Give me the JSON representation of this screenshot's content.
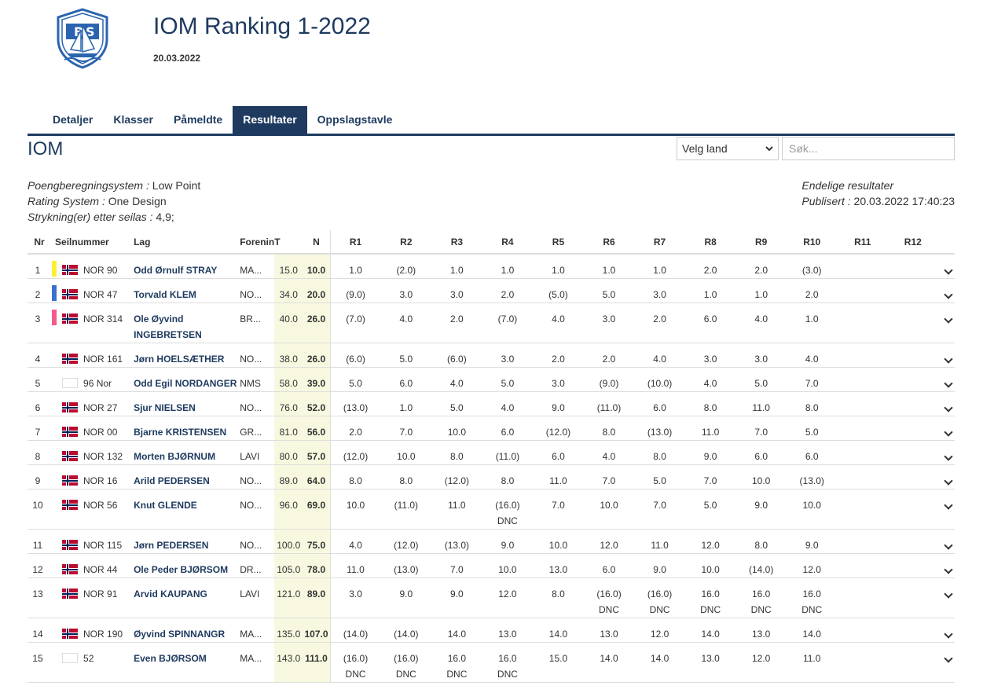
{
  "header": {
    "logo_text_left": "B",
    "logo_text_right": "S",
    "title": "IOM Ranking 1-2022",
    "date": "20.03.2022"
  },
  "tabs": [
    {
      "label": "Detaljer",
      "active": false
    },
    {
      "label": "Klasser",
      "active": false
    },
    {
      "label": "Påmeldte",
      "active": false
    },
    {
      "label": "Resultater",
      "active": true
    },
    {
      "label": "Oppslagstavle",
      "active": false
    }
  ],
  "class_title": "IOM",
  "filters": {
    "country_selected": "Velg land",
    "search_placeholder": "Søk..."
  },
  "meta": {
    "scoring_label": "Poengberegningsystem",
    "scoring_value": "Low Point",
    "rating_label": "Rating System",
    "rating_value": "One Design",
    "discard_label": "Strykning(er) etter seilas",
    "discard_value": "4,9;",
    "status": "Endelige resultater",
    "published_label": "Publisert",
    "published_value": "20.03.2022 17:40:23"
  },
  "columns": {
    "nr": "Nr",
    "sail": "Seilnummer",
    "team": "Lag",
    "club": "Forening",
    "total": "T",
    "net": "N",
    "races": [
      "R1",
      "R2",
      "R3",
      "R4",
      "R5",
      "R6",
      "R7",
      "R8",
      "R9",
      "R10",
      "R11",
      "R12"
    ]
  },
  "colors": {
    "primary": "#1e3a5f",
    "highlight_col": "#f8f8e0",
    "gold": "#ffee33",
    "silver": "#3a6fd1",
    "bronze": "#f45a8c"
  },
  "rows": [
    {
      "nr": "1",
      "flag": true,
      "medal": "gold",
      "sail": "NOR 90",
      "name": "Odd Ørnulf STRAY",
      "club": "MA...",
      "total": "15.0",
      "net": "10.0",
      "races": [
        [
          "1.0"
        ],
        [
          "(2.0)"
        ],
        [
          "1.0"
        ],
        [
          "1.0"
        ],
        [
          "1.0"
        ],
        [
          "1.0"
        ],
        [
          "1.0"
        ],
        [
          "2.0"
        ],
        [
          "2.0"
        ],
        [
          "(3.0)"
        ],
        [
          ""
        ],
        [
          ""
        ]
      ]
    },
    {
      "nr": "2",
      "flag": true,
      "medal": "silver",
      "sail": "NOR 47",
      "name": "Torvald KLEM",
      "club": "NO...",
      "total": "34.0",
      "net": "20.0",
      "races": [
        [
          "(9.0)"
        ],
        [
          "3.0"
        ],
        [
          "3.0"
        ],
        [
          "2.0"
        ],
        [
          "(5.0)"
        ],
        [
          "5.0"
        ],
        [
          "3.0"
        ],
        [
          "1.0"
        ],
        [
          "1.0"
        ],
        [
          "2.0"
        ],
        [
          ""
        ],
        [
          ""
        ]
      ]
    },
    {
      "nr": "3",
      "flag": true,
      "medal": "bronze",
      "sail": "NOR 314",
      "name": "Ole Øyvind INGEBRETSEN",
      "club": "BR...",
      "total": "40.0",
      "net": "26.0",
      "races": [
        [
          "(7.0)"
        ],
        [
          "4.0"
        ],
        [
          "2.0"
        ],
        [
          "(7.0)"
        ],
        [
          "4.0"
        ],
        [
          "3.0"
        ],
        [
          "2.0"
        ],
        [
          "6.0"
        ],
        [
          "4.0"
        ],
        [
          "1.0"
        ],
        [
          ""
        ],
        [
          ""
        ]
      ]
    },
    {
      "nr": "4",
      "flag": true,
      "medal": "",
      "sail": "NOR 161",
      "name": "Jørn HOELSÆTHER",
      "club": "NO...",
      "total": "38.0",
      "net": "26.0",
      "races": [
        [
          "(6.0)"
        ],
        [
          "5.0"
        ],
        [
          "(6.0)"
        ],
        [
          "3.0"
        ],
        [
          "2.0"
        ],
        [
          "2.0"
        ],
        [
          "4.0"
        ],
        [
          "3.0"
        ],
        [
          "3.0"
        ],
        [
          "4.0"
        ],
        [
          ""
        ],
        [
          ""
        ]
      ]
    },
    {
      "nr": "5",
      "flag": false,
      "medal": "",
      "sail": "96 Nor",
      "name": "Odd Egil NORDANGER",
      "club": "NMS",
      "total": "58.0",
      "net": "39.0",
      "races": [
        [
          "5.0"
        ],
        [
          "6.0"
        ],
        [
          "4.0"
        ],
        [
          "5.0"
        ],
        [
          "3.0"
        ],
        [
          "(9.0)"
        ],
        [
          "(10.0)"
        ],
        [
          "4.0"
        ],
        [
          "5.0"
        ],
        [
          "7.0"
        ],
        [
          ""
        ],
        [
          ""
        ]
      ]
    },
    {
      "nr": "6",
      "flag": true,
      "medal": "",
      "sail": "NOR 27",
      "name": "Sjur NIELSEN",
      "club": "NO...",
      "total": "76.0",
      "net": "52.0",
      "races": [
        [
          "(13.0)"
        ],
        [
          "1.0"
        ],
        [
          "5.0"
        ],
        [
          "4.0"
        ],
        [
          "9.0"
        ],
        [
          "(11.0)"
        ],
        [
          "6.0"
        ],
        [
          "8.0"
        ],
        [
          "11.0"
        ],
        [
          "8.0"
        ],
        [
          ""
        ],
        [
          ""
        ]
      ]
    },
    {
      "nr": "7",
      "flag": true,
      "medal": "",
      "sail": "NOR 00",
      "name": "Bjarne KRISTENSEN",
      "club": "GR...",
      "total": "81.0",
      "net": "56.0",
      "races": [
        [
          "2.0"
        ],
        [
          "7.0"
        ],
        [
          "10.0"
        ],
        [
          "6.0"
        ],
        [
          "(12.0)"
        ],
        [
          "8.0"
        ],
        [
          "(13.0)"
        ],
        [
          "11.0"
        ],
        [
          "7.0"
        ],
        [
          "5.0"
        ],
        [
          ""
        ],
        [
          ""
        ]
      ]
    },
    {
      "nr": "8",
      "flag": true,
      "medal": "",
      "sail": "NOR 132",
      "name": "Morten BJØRNUM",
      "club": "LAVI",
      "total": "80.0",
      "net": "57.0",
      "races": [
        [
          "(12.0)"
        ],
        [
          "10.0"
        ],
        [
          "8.0"
        ],
        [
          "(11.0)"
        ],
        [
          "6.0"
        ],
        [
          "4.0"
        ],
        [
          "8.0"
        ],
        [
          "9.0"
        ],
        [
          "6.0"
        ],
        [
          "6.0"
        ],
        [
          ""
        ],
        [
          ""
        ]
      ]
    },
    {
      "nr": "9",
      "flag": true,
      "medal": "",
      "sail": "NOR 16",
      "name": "Arild PEDERSEN",
      "club": "NO...",
      "total": "89.0",
      "net": "64.0",
      "races": [
        [
          "8.0"
        ],
        [
          "8.0"
        ],
        [
          "(12.0)"
        ],
        [
          "8.0"
        ],
        [
          "11.0"
        ],
        [
          "7.0"
        ],
        [
          "5.0"
        ],
        [
          "7.0"
        ],
        [
          "10.0"
        ],
        [
          "(13.0)"
        ],
        [
          ""
        ],
        [
          ""
        ]
      ]
    },
    {
      "nr": "10",
      "flag": true,
      "medal": "",
      "sail": "NOR 56",
      "name": "Knut GLENDE",
      "club": "NO...",
      "total": "96.0",
      "net": "69.0",
      "races": [
        [
          "10.0"
        ],
        [
          "(11.0)"
        ],
        [
          "11.0"
        ],
        [
          "(16.0)",
          "DNC"
        ],
        [
          "7.0"
        ],
        [
          "10.0"
        ],
        [
          "7.0"
        ],
        [
          "5.0"
        ],
        [
          "9.0"
        ],
        [
          "10.0"
        ],
        [
          ""
        ],
        [
          ""
        ]
      ]
    },
    {
      "nr": "11",
      "flag": true,
      "medal": "",
      "sail": "NOR 115",
      "name": "Jørn PEDERSEN",
      "club": "NO...",
      "total": "100.0",
      "net": "75.0",
      "races": [
        [
          "4.0"
        ],
        [
          "(12.0)"
        ],
        [
          "(13.0)"
        ],
        [
          "9.0"
        ],
        [
          "10.0"
        ],
        [
          "12.0"
        ],
        [
          "11.0"
        ],
        [
          "12.0"
        ],
        [
          "8.0"
        ],
        [
          "9.0"
        ],
        [
          ""
        ],
        [
          ""
        ]
      ]
    },
    {
      "nr": "12",
      "flag": true,
      "medal": "",
      "sail": "NOR 44",
      "name": "Ole Peder BJØRSOM",
      "club": "DR...",
      "total": "105.0",
      "net": "78.0",
      "races": [
        [
          "11.0"
        ],
        [
          "(13.0)"
        ],
        [
          "7.0"
        ],
        [
          "10.0"
        ],
        [
          "13.0"
        ],
        [
          "6.0"
        ],
        [
          "9.0"
        ],
        [
          "10.0"
        ],
        [
          "(14.0)"
        ],
        [
          "12.0"
        ],
        [
          ""
        ],
        [
          ""
        ]
      ]
    },
    {
      "nr": "13",
      "flag": true,
      "medal": "",
      "sail": "NOR 91",
      "name": "Arvid KAUPANG",
      "club": "LAVI",
      "total": "121.0",
      "net": "89.0",
      "races": [
        [
          "3.0"
        ],
        [
          "9.0"
        ],
        [
          "9.0"
        ],
        [
          "12.0"
        ],
        [
          "8.0"
        ],
        [
          "(16.0)",
          "DNC"
        ],
        [
          "(16.0)",
          "DNC"
        ],
        [
          "16.0",
          "DNC"
        ],
        [
          "16.0",
          "DNC"
        ],
        [
          "16.0",
          "DNC"
        ],
        [
          ""
        ],
        [
          ""
        ]
      ]
    },
    {
      "nr": "14",
      "flag": true,
      "medal": "",
      "sail": "NOR 190",
      "name": "Øyvind SPINNANGR",
      "club": "MA...",
      "total": "135.0",
      "net": "107.0",
      "races": [
        [
          "(14.0)"
        ],
        [
          "(14.0)"
        ],
        [
          "14.0"
        ],
        [
          "13.0"
        ],
        [
          "14.0"
        ],
        [
          "13.0"
        ],
        [
          "12.0"
        ],
        [
          "14.0"
        ],
        [
          "13.0"
        ],
        [
          "14.0"
        ],
        [
          ""
        ],
        [
          ""
        ]
      ]
    },
    {
      "nr": "15",
      "flag": false,
      "medal": "",
      "sail": "52",
      "name": "Even BJØRSOM",
      "club": "MA...",
      "total": "143.0",
      "net": "111.0",
      "races": [
        [
          "(16.0)",
          "DNC"
        ],
        [
          "(16.0)",
          "DNC"
        ],
        [
          "16.0",
          "DNC"
        ],
        [
          "16.0",
          "DNC"
        ],
        [
          "15.0"
        ],
        [
          "14.0"
        ],
        [
          "14.0"
        ],
        [
          "13.0"
        ],
        [
          "12.0"
        ],
        [
          "11.0"
        ],
        [
          ""
        ],
        [
          ""
        ]
      ]
    }
  ]
}
